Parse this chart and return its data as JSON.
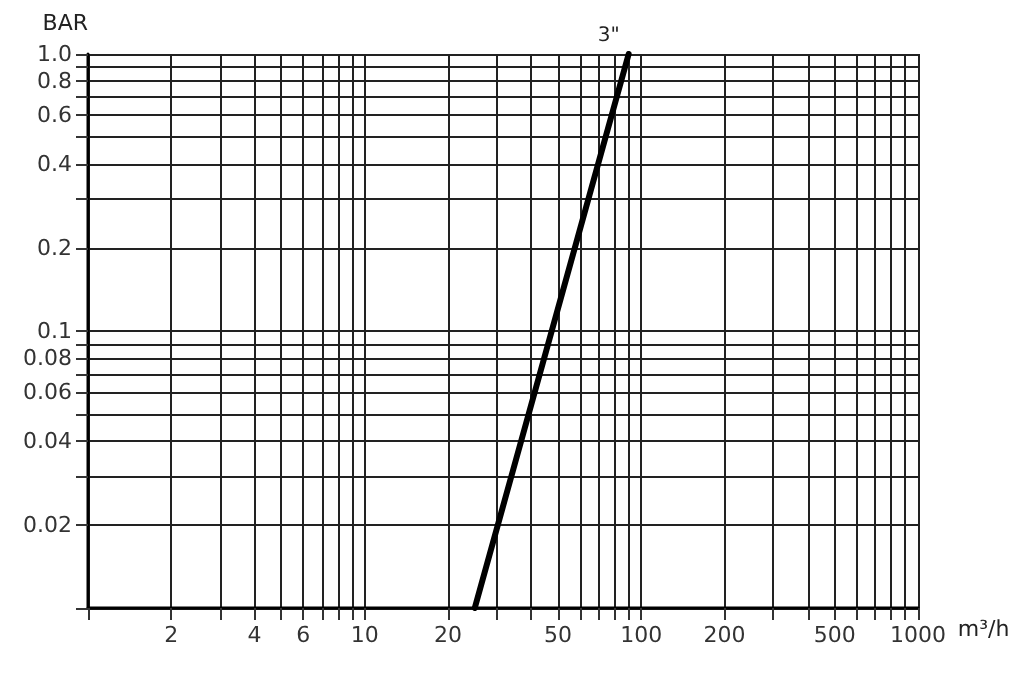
{
  "chart_data": {
    "type": "line",
    "xlabel": "m³/h",
    "ylabel": "BAR",
    "log": "xy",
    "grid": true,
    "legend": false,
    "marker": "none",
    "line_style": "solid",
    "xlim": [
      1,
      1000
    ],
    "ylim": [
      0.01,
      1
    ],
    "xticks": [
      {
        "value": 1,
        "label": null
      },
      2,
      {
        "value": 3,
        "label": null
      },
      4,
      {
        "value": 5,
        "label": null
      },
      6,
      {
        "value": 7,
        "label": null
      },
      {
        "value": 8,
        "label": null
      },
      {
        "value": 9,
        "label": null
      },
      10,
      20,
      {
        "value": 30,
        "label": null
      },
      {
        "value": 40,
        "label": null
      },
      50,
      {
        "value": 60,
        "label": null
      },
      {
        "value": 70,
        "label": null
      },
      {
        "value": 80,
        "label": null
      },
      {
        "value": 90,
        "label": null
      },
      100,
      200,
      {
        "value": 300,
        "label": null
      },
      {
        "value": 400,
        "label": null
      },
      500,
      {
        "value": 600,
        "label": null
      },
      {
        "value": 700,
        "label": null
      },
      {
        "value": 800,
        "label": null
      },
      {
        "value": 900,
        "label": null
      },
      1000
    ],
    "yticks": [
      {
        "value": 0.01,
        "label": null
      },
      0.02,
      {
        "value": 0.03,
        "label": null
      },
      0.04,
      {
        "value": 0.05,
        "label": null
      },
      0.06,
      {
        "value": 0.07,
        "label": null
      },
      0.08,
      {
        "value": 0.09,
        "label": null
      },
      0.1,
      0.2,
      {
        "value": 0.3,
        "label": null
      },
      0.4,
      {
        "value": 0.5,
        "label": null
      },
      0.6,
      {
        "value": 0.7,
        "label": null
      },
      0.8,
      {
        "value": 0.9,
        "label": null
      },
      {
        "value": 1,
        "label": "1.0"
      }
    ],
    "series": [
      {
        "name": "3\"",
        "color": "#000000",
        "x": [
          25,
          90
        ],
        "values": [
          0.01,
          1
        ]
      }
    ]
  }
}
